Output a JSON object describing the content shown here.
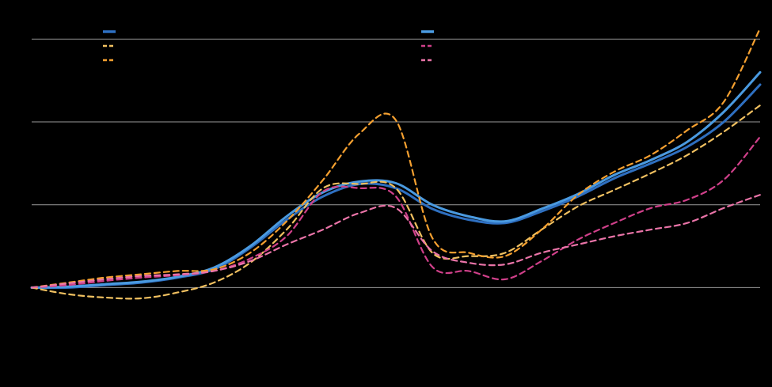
{
  "colors": {
    "background": "#000000",
    "grid": "#9a9a9a"
  },
  "chart_data": {
    "type": "line",
    "title": "",
    "xlabel": "",
    "ylabel": "",
    "x": [
      0,
      0.05,
      0.1,
      0.15,
      0.2,
      0.25,
      0.3,
      0.35,
      0.4,
      0.45,
      0.5,
      0.55,
      0.6,
      0.65,
      0.7,
      0.75,
      0.8,
      0.85,
      0.9,
      0.95,
      1
    ],
    "xlim": [
      0,
      1
    ],
    "ylim": [
      -0.35,
      3.3
    ],
    "y_gridlines": [
      0,
      1,
      2,
      3
    ],
    "grid": true,
    "legend_position": "top",
    "series": [
      {
        "key": "solid_a",
        "color": "#2e6fc0",
        "dash": "",
        "width": 3,
        "legend_col": 0,
        "legend_row": 0,
        "values": [
          0,
          0,
          0.03,
          0.06,
          0.12,
          0.22,
          0.48,
          0.82,
          1.1,
          1.25,
          1.2,
          0.95,
          0.82,
          0.78,
          0.92,
          1.1,
          1.32,
          1.5,
          1.7,
          2.0,
          2.45
        ]
      },
      {
        "key": "solid_b",
        "color": "#4a9ae0",
        "dash": "",
        "width": 3,
        "legend_col": 1,
        "legend_row": 0,
        "values": [
          0,
          0.01,
          0.04,
          0.07,
          0.13,
          0.24,
          0.5,
          0.86,
          1.15,
          1.28,
          1.26,
          1.0,
          0.86,
          0.8,
          0.95,
          1.13,
          1.36,
          1.54,
          1.76,
          2.12,
          2.6
        ]
      },
      {
        "key": "dash_orange_a",
        "color": "#f0c060",
        "dash": "7 5",
        "width": 2.2,
        "legend_col": 0,
        "legend_row": 1,
        "values": [
          0,
          -0.08,
          -0.12,
          -0.13,
          -0.06,
          0.06,
          0.3,
          0.7,
          1.2,
          1.25,
          1.2,
          0.42,
          0.38,
          0.42,
          0.7,
          0.98,
          1.18,
          1.38,
          1.6,
          1.88,
          2.2
        ]
      },
      {
        "key": "dash_red_a",
        "color": "#d0408a",
        "dash": "7 5",
        "width": 2.2,
        "legend_col": 1,
        "legend_row": 1,
        "values": [
          0,
          0.03,
          0.08,
          0.12,
          0.15,
          0.2,
          0.35,
          0.62,
          1.16,
          1.2,
          1.1,
          0.25,
          0.2,
          0.1,
          0.32,
          0.58,
          0.78,
          0.96,
          1.06,
          1.3,
          1.82
        ]
      },
      {
        "key": "dash_orange_b",
        "color": "#f5a030",
        "dash": "7 5",
        "width": 2.2,
        "legend_col": 0,
        "legend_row": 2,
        "values": [
          0,
          0.06,
          0.12,
          0.16,
          0.2,
          0.22,
          0.42,
          0.8,
          1.3,
          1.86,
          2.02,
          0.6,
          0.42,
          0.38,
          0.7,
          1.12,
          1.4,
          1.6,
          1.9,
          2.24,
          3.13
        ]
      },
      {
        "key": "dash_pink_b",
        "color": "#ea74a8",
        "dash": "7 5",
        "width": 2.2,
        "legend_col": 1,
        "legend_row": 2,
        "values": [
          0,
          0.05,
          0.1,
          0.14,
          0.16,
          0.2,
          0.32,
          0.52,
          0.7,
          0.9,
          0.96,
          0.44,
          0.3,
          0.28,
          0.42,
          0.52,
          0.62,
          0.7,
          0.78,
          0.96,
          1.12
        ]
      }
    ]
  }
}
